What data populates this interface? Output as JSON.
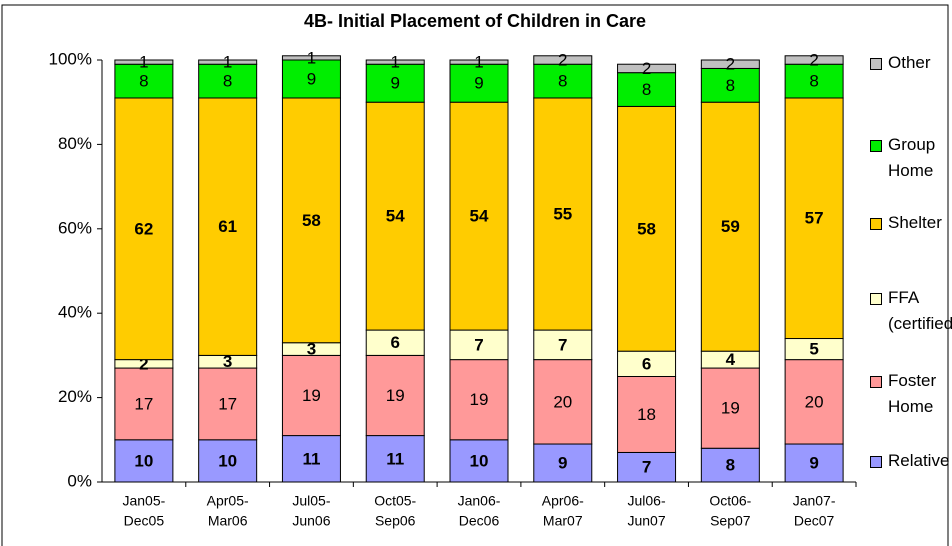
{
  "chart_data": {
    "type": "stacked_bar",
    "title": "4B- Initial Placement of Children in Care",
    "categories": [
      [
        "Jan05-",
        "Dec05"
      ],
      [
        "Apr05-",
        "Mar06"
      ],
      [
        "Jul05-",
        "Jun06"
      ],
      [
        "Oct05-",
        "Sep06"
      ],
      [
        "Jan06-",
        "Dec06"
      ],
      [
        "Apr06-",
        "Mar07"
      ],
      [
        "Jul06-",
        "Jun07"
      ],
      [
        "Oct06-",
        "Sep07"
      ],
      [
        "Jan07-",
        "Dec07"
      ]
    ],
    "series": [
      {
        "name": "Relative",
        "color": "#9999ff",
        "values": [
          10,
          10,
          11,
          11,
          10,
          9,
          7,
          8,
          9
        ]
      },
      {
        "name": "Foster Home",
        "color": "#ff9999",
        "values": [
          17,
          17,
          19,
          19,
          19,
          20,
          18,
          19,
          20
        ]
      },
      {
        "name": "FFA (certified)",
        "color": "#ffffcc",
        "values": [
          2,
          3,
          3,
          6,
          7,
          7,
          6,
          4,
          5
        ]
      },
      {
        "name": "Shelter",
        "color": "#ffcc00",
        "values": [
          62,
          61,
          58,
          54,
          54,
          55,
          58,
          59,
          57
        ]
      },
      {
        "name": "Group Home",
        "color": "#00ee00",
        "values": [
          8,
          8,
          9,
          9,
          9,
          8,
          8,
          8,
          8
        ]
      },
      {
        "name": "Other",
        "color": "#c0c0c0",
        "values": [
          1,
          1,
          1,
          1,
          1,
          2,
          2,
          2,
          2
        ]
      }
    ],
    "ylim": [
      0,
      100
    ],
    "yticks": [
      {
        "value": 0,
        "label": "0%"
      },
      {
        "value": 20,
        "label": "20%"
      },
      {
        "value": 40,
        "label": "40%"
      },
      {
        "value": 60,
        "label": "60%"
      },
      {
        "value": 80,
        "label": "80%"
      },
      {
        "value": 100,
        "label": "100%"
      }
    ]
  }
}
